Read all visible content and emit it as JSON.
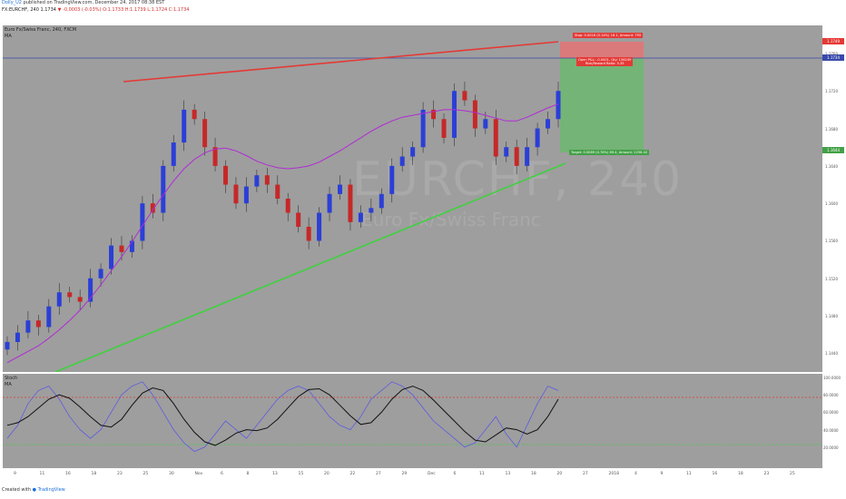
{
  "header": {
    "author": "Dolly_U2",
    "published": "published on TradingView.com, December 24, 2017 08:38 EST"
  },
  "symbol_line": {
    "symbol": "FX:EURCHF, 240",
    "last": "1.1734",
    "change": "▼ -0.0003 (-0.03%)",
    "ohlc": "O:1.1733 H:1.1739 L:1.1724 C:1.1734"
  },
  "pane_legend": {
    "title": "Euro Fx/Swiss Franc, 240, FXCM",
    "ma": "MA"
  },
  "watermark": {
    "symbol": "EURCHF, 240",
    "name": "Euro Fx/Swiss Franc"
  },
  "position": {
    "stop_label": "Stop: 0.0016 (0.14%) 16.1, Amount: 795",
    "entry_label_1": "Open P&L: -0.0001, Qty: 156249",
    "entry_label_2": "Risk/Reward Ratio: 5.35",
    "target_label": "Target: 0.0089 (0.76%) 89.4, Amount: 2256.42"
  },
  "price_axis": {
    "ticks": [
      "1.1760",
      "1.1720",
      "1.1680",
      "1.1640",
      "1.1600",
      "1.1560",
      "1.1520",
      "1.1480",
      "1.1440"
    ],
    "tags": {
      "stop": "1.1749",
      "last": "1.1734",
      "target": "1.1644"
    }
  },
  "stoch_legend": {
    "title": "Stoch",
    "ma": "MA"
  },
  "stoch_axis": {
    "ticks": [
      "100.0000",
      "80.0000",
      "60.0000",
      "40.0000",
      "20.0000"
    ]
  },
  "time_axis": {
    "ticks": [
      "9",
      "11",
      "16",
      "18",
      "23",
      "25",
      "30",
      "Nov",
      "6",
      "8",
      "13",
      "15",
      "20",
      "22",
      "27",
      "29",
      "Dec",
      "6",
      "11",
      "13",
      "18",
      "20",
      "27",
      "2018",
      "4",
      "9",
      "11",
      "16",
      "18",
      "23",
      "25"
    ]
  },
  "footer": {
    "created": "Created with",
    "brand": "TradingView"
  },
  "colors": {
    "background": "#9e9e9e",
    "bull_candle": "#2b3fd6",
    "bear_candle": "#c62828",
    "moving_average": "#b02cd6",
    "resistance_line": "#e53935",
    "support_line": "#3fd13f",
    "last_price_line": "#3949ab",
    "stop_zone": "#e57373",
    "target_zone": "#66bb6a",
    "stoch_k": "#5c5ce0",
    "stoch_d": "#111111",
    "overbought": "#e53935",
    "oversold": "#3fd13f"
  },
  "chart_data": {
    "type": "candlestick",
    "ylim": [
      1.142,
      1.179
    ],
    "ma": [
      1.143,
      1.1436,
      1.1442,
      1.1448,
      1.1456,
      1.1465,
      1.1475,
      1.1486,
      1.1499,
      1.1513,
      1.1528,
      1.1543,
      1.1559,
      1.1576,
      1.1593,
      1.1609,
      1.1624,
      1.1637,
      1.1647,
      1.1654,
      1.1658,
      1.1659,
      1.1656,
      1.1651,
      1.1645,
      1.1641,
      1.1638,
      1.1637,
      1.1638,
      1.164,
      1.1644,
      1.165,
      1.1656,
      1.1663,
      1.167,
      1.1677,
      1.1683,
      1.1688,
      1.1692,
      1.1694,
      1.1696,
      1.1698,
      1.17,
      1.17,
      1.1699,
      1.1697,
      1.1694,
      1.1691,
      1.1688,
      1.1688,
      1.1692,
      1.1697,
      1.1702,
      1.1706
    ],
    "close": [
      1.1452,
      1.1462,
      1.1475,
      1.1468,
      1.149,
      1.1505,
      1.15,
      1.1495,
      1.152,
      1.153,
      1.1555,
      1.1548,
      1.156,
      1.16,
      1.159,
      1.164,
      1.1665,
      1.17,
      1.169,
      1.166,
      1.164,
      1.162,
      1.16,
      1.1618,
      1.163,
      1.162,
      1.1605,
      1.159,
      1.1575,
      1.156,
      1.159,
      1.161,
      1.162,
      1.158,
      1.159,
      1.1595,
      1.161,
      1.164,
      1.165,
      1.166,
      1.17,
      1.169,
      1.167,
      1.172,
      1.171,
      1.168,
      1.169,
      1.165,
      1.166,
      1.164,
      1.166,
      1.168,
      1.169,
      1.172
    ],
    "stoch_k": [
      30,
      45,
      70,
      85,
      90,
      75,
      55,
      40,
      30,
      40,
      60,
      80,
      90,
      95,
      80,
      60,
      40,
      25,
      15,
      20,
      35,
      50,
      40,
      30,
      45,
      60,
      75,
      85,
      90,
      85,
      70,
      55,
      45,
      40,
      55,
      75,
      85,
      95,
      90,
      80,
      65,
      50,
      40,
      30,
      20,
      25,
      40,
      55,
      35,
      20,
      45,
      70,
      90,
      85
    ],
    "stoch_d": [
      45,
      48,
      55,
      65,
      75,
      80,
      76,
      66,
      55,
      45,
      43,
      52,
      68,
      82,
      88,
      85,
      70,
      52,
      37,
      26,
      22,
      28,
      36,
      40,
      39,
      42,
      52,
      65,
      78,
      86,
      87,
      80,
      68,
      56,
      46,
      48,
      60,
      75,
      86,
      90,
      85,
      74,
      62,
      50,
      38,
      28,
      26,
      34,
      42,
      40,
      35,
      40,
      55,
      75
    ],
    "stoch_ylim": [
      0,
      100
    ]
  }
}
